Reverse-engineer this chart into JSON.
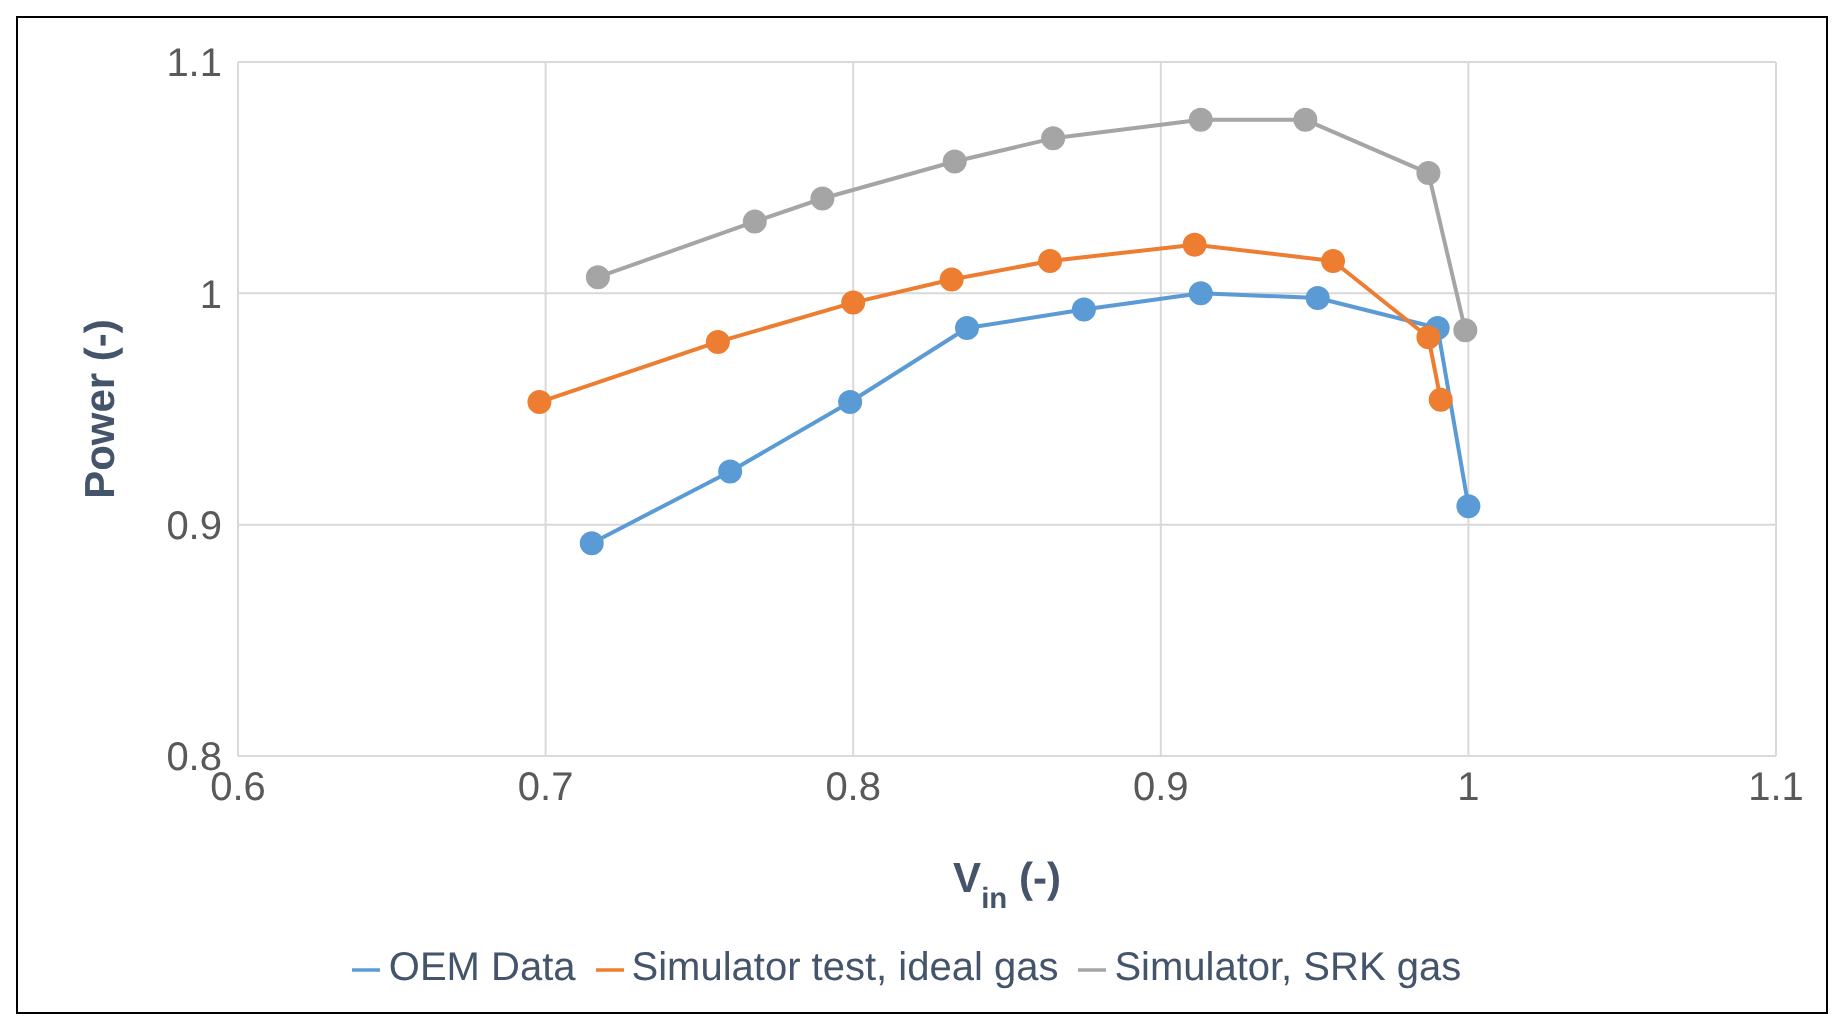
{
  "chart_data": {
    "type": "line",
    "xlabel": "V$_{in}$ (-)",
    "ylabel": "Power (-)",
    "xlim": [
      0.6,
      1.1
    ],
    "xticks": [
      0.6,
      0.7,
      0.8,
      0.9,
      1,
      1.1
    ],
    "ylim": [
      0.8,
      1.1
    ],
    "yticks": [
      0.8,
      0.9,
      1,
      1.1
    ],
    "grid": true,
    "legend": "bottom",
    "marker": "circle",
    "line_style": "solid",
    "series": [
      {
        "name": "OEM Data",
        "color": "#5b9bd5",
        "x": [
          0.715,
          0.76,
          0.799,
          0.837,
          0.875,
          0.913,
          0.951,
          0.99,
          1.0
        ],
        "values": [
          0.892,
          0.923,
          0.953,
          0.985,
          0.993,
          1.0,
          0.998,
          0.985,
          0.908
        ]
      },
      {
        "name": "Simulator test, ideal gas",
        "color": "#ed7d31",
        "x": [
          0.698,
          0.756,
          0.8,
          0.832,
          0.864,
          0.911,
          0.956,
          0.987,
          0.991
        ],
        "values": [
          0.953,
          0.979,
          0.996,
          1.006,
          1.014,
          1.021,
          1.014,
          0.981,
          0.954
        ]
      },
      {
        "name": "Simulator, SRK gas",
        "color": "#a5a5a5",
        "x": [
          0.717,
          0.768,
          0.79,
          0.833,
          0.865,
          0.913,
          0.947,
          0.987,
          0.999
        ],
        "values": [
          1.007,
          1.031,
          1.041,
          1.057,
          1.067,
          1.075,
          1.075,
          1.052,
          0.984
        ]
      }
    ]
  }
}
